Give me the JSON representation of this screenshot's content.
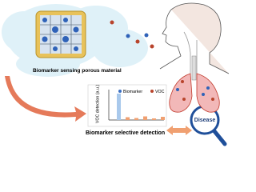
{
  "material_label": "Biomarker sensing porous material",
  "chart": {
    "y_label": "VOC detection (a.u.)",
    "legend": [
      {
        "name": "Biomarker",
        "color": "#3b6fc2"
      },
      {
        "name": "VOC",
        "color": "#b8442c"
      }
    ],
    "values": [
      66,
      7,
      5,
      9,
      4,
      8
    ],
    "colors": [
      "#a9c9ec",
      "#f0a071",
      "#f0a071",
      "#f0a071",
      "#f0a071",
      "#f0a071"
    ]
  },
  "caption": "Biomarker selective detection",
  "disease_label": "Disease"
}
